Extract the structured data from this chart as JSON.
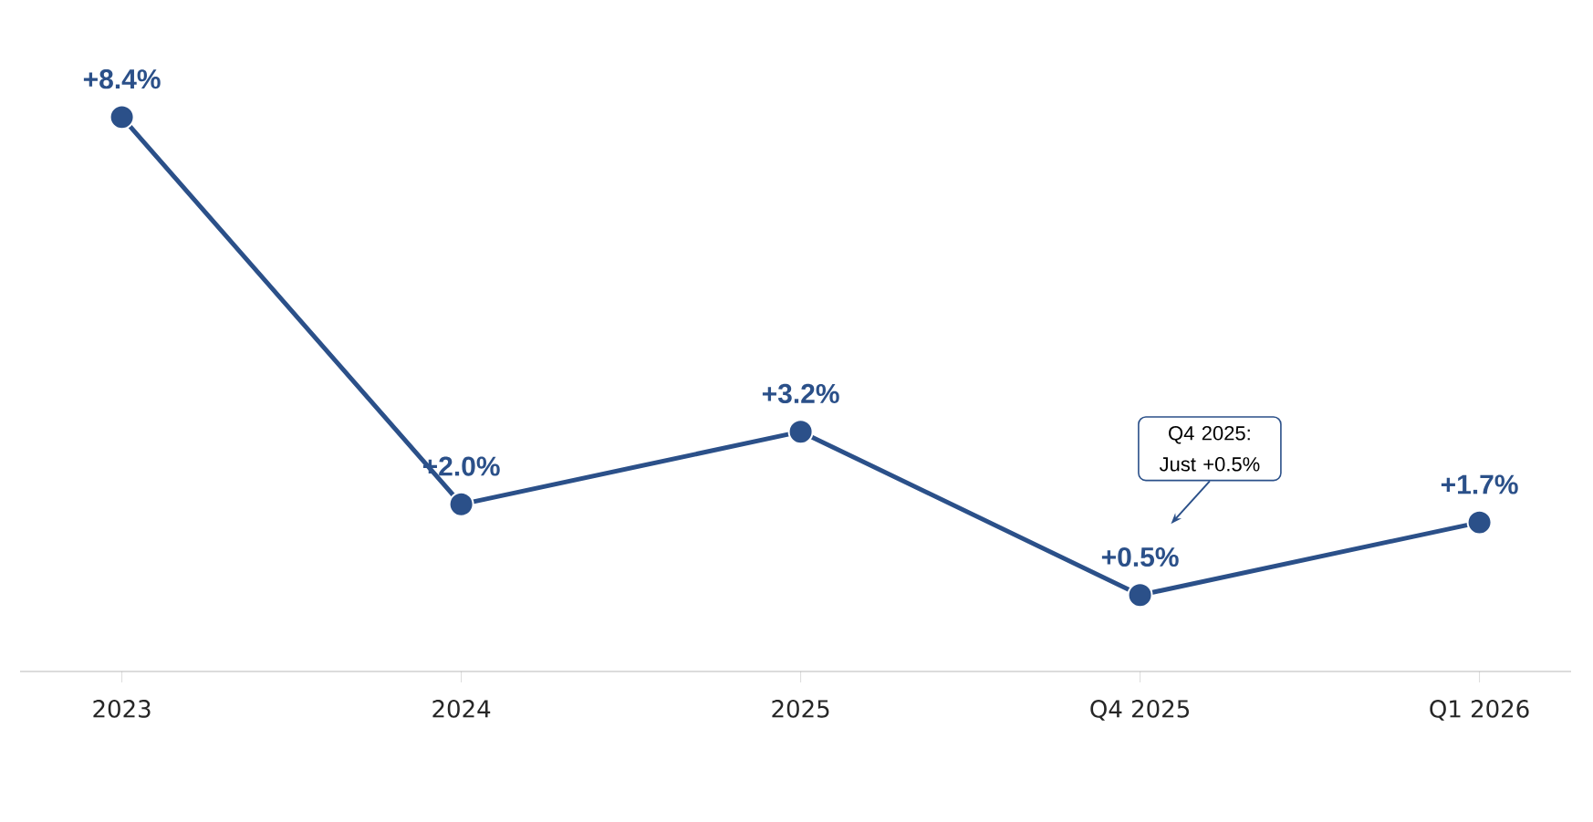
{
  "chart_data": {
    "type": "line",
    "categories": [
      "2023",
      "2024",
      "2025",
      "Q4 2025",
      "Q1 2026"
    ],
    "series": [
      {
        "color": "#2b5089",
        "values": [
          8.4,
          2.0,
          3.2,
          0.5,
          1.7
        ],
        "value_labels": [
          "+8.4%",
          "+2.0%",
          "+3.2%",
          "+0.5%",
          "+1.7%"
        ]
      }
    ],
    "marker": "circle",
    "line_style": "solid",
    "annotations": [
      "Q4 2025: Just +0.5%"
    ]
  }
}
